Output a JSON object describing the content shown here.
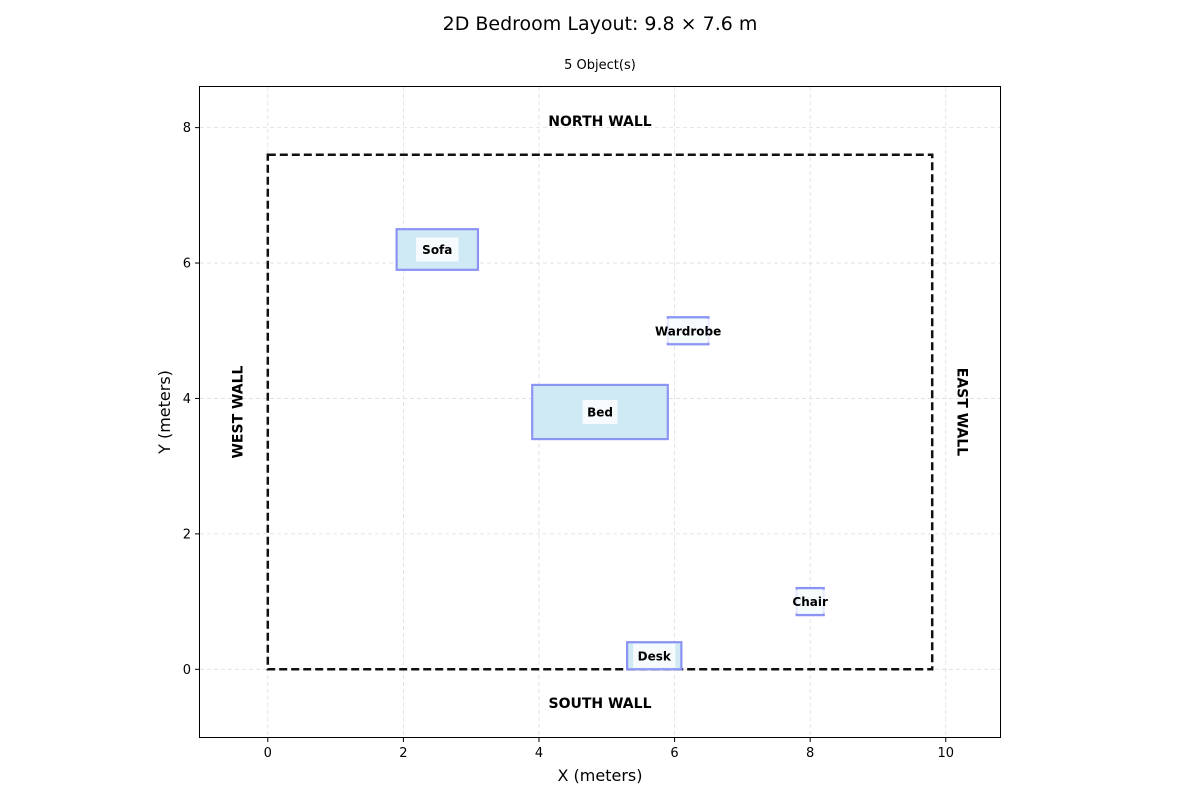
{
  "chart_data": {
    "type": "scatter",
    "title": "2D Bedroom Layout: 9.8 × 7.6 m",
    "subtitle": "5 Object(s)",
    "xlabel": "X (meters)",
    "ylabel": "Y (meters)",
    "xlim": [
      -1,
      10.8
    ],
    "ylim": [
      -1,
      8.6
    ],
    "xticks": [
      0,
      2,
      4,
      6,
      8,
      10
    ],
    "yticks": [
      0,
      2,
      4,
      6,
      8
    ],
    "grid": true,
    "room": {
      "x0": 0,
      "y0": 0,
      "x1": 9.8,
      "y1": 7.6
    },
    "walls": [
      {
        "side": "north",
        "label": "NORTH WALL",
        "x": 4.9,
        "y": 8.1,
        "rotate": 0
      },
      {
        "side": "south",
        "label": "SOUTH WALL",
        "x": 4.9,
        "y": -0.5,
        "rotate": 0
      },
      {
        "side": "west",
        "label": "WEST WALL",
        "x": -0.45,
        "y": 3.8,
        "rotate": -90
      },
      {
        "side": "east",
        "label": "EAST WALL",
        "x": 10.25,
        "y": 3.8,
        "rotate": 90
      }
    ],
    "objects": [
      {
        "name": "Sofa",
        "x0": 1.9,
        "y0": 5.9,
        "x1": 3.1,
        "y1": 6.5
      },
      {
        "name": "Wardrobe",
        "x0": 5.9,
        "y0": 4.8,
        "x1": 6.5,
        "y1": 5.2
      },
      {
        "name": "Bed",
        "x0": 3.9,
        "y0": 3.4,
        "x1": 5.9,
        "y1": 4.2
      },
      {
        "name": "Chair",
        "x0": 7.8,
        "y0": 0.8,
        "x1": 8.2,
        "y1": 1.2
      },
      {
        "name": "Desk",
        "x0": 5.3,
        "y0": 0.0,
        "x1": 6.1,
        "y1": 0.4
      }
    ],
    "colors": {
      "object_fill": "#d0eaf5",
      "object_edge": "#8b93f5",
      "room_border": "#111111",
      "grid": "#dddddd",
      "label_box": "#ffffff"
    }
  }
}
